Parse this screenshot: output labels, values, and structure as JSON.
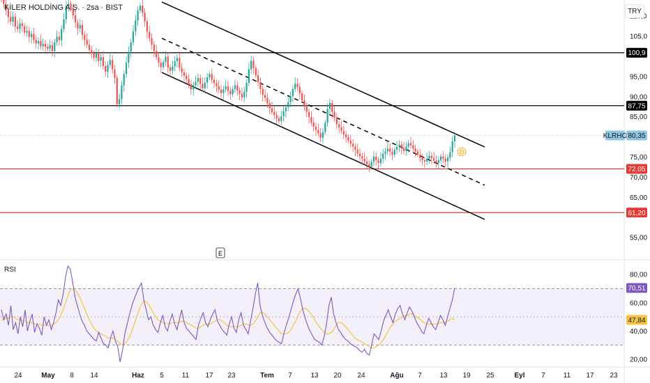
{
  "header": {
    "title": "KİLER HOLDİNG A.Ş. · 2sa · BIST",
    "currency": "TRY"
  },
  "rsi_panel": {
    "title": "RSI"
  },
  "event_marker": "E",
  "dividend_marker": "D",
  "price_axis": {
    "ticks": [
      "110,0",
      "105,0",
      "95,00",
      "90,00",
      "85,00",
      "75,00",
      "70,00",
      "65,00",
      "55,00"
    ],
    "levels": [
      {
        "value": 100.9,
        "label": "100,9",
        "color": "#000000"
      },
      {
        "value": 87.75,
        "label": "87,75",
        "color": "#000000"
      },
      {
        "value": 72.05,
        "label": "72,05",
        "color": "#e53935"
      },
      {
        "value": 61.2,
        "label": "61,20",
        "color": "#e53935"
      }
    ],
    "last_price": {
      "symbol": "KLRHO",
      "value": 80.35,
      "label": "80,35",
      "color": "#90c6e0"
    }
  },
  "rsi_axis": {
    "ticks": [
      "80,00",
      "60,00",
      "40,00",
      "20,00"
    ],
    "current": {
      "label": "70,51",
      "value": 70.51,
      "color": "#7e57c2"
    },
    "ma": {
      "label": "47,84",
      "value": 47.84,
      "color": "#f5c542"
    },
    "upper_band": 70,
    "lower_band": 30
  },
  "time_axis": {
    "labels": [
      "24",
      "May",
      "8",
      "14",
      "Haz",
      "5",
      "11",
      "17",
      "23",
      "Tem",
      "7",
      "13",
      "20",
      "24",
      "Ağu",
      "7",
      "13",
      "19",
      "25",
      "Eyl",
      "7",
      "11",
      "17",
      "23"
    ],
    "bold": [
      "May",
      "Haz",
      "Tem",
      "Ağu",
      "Eyl"
    ]
  },
  "chart_data": {
    "type": "candlestick",
    "y_range": [
      50,
      114
    ],
    "rsi_range": [
      15,
      88
    ],
    "channel": {
      "upper": [
        [
          0,
          113.5
        ],
        [
          1,
          77.5
        ]
      ],
      "mid": [
        [
          0,
          104.5
        ],
        [
          1,
          68
        ]
      ],
      "lower": [
        [
          0,
          96.0
        ],
        [
          1,
          59.5
        ]
      ]
    },
    "closes": [
      114.2,
      113.0,
      111.5,
      109.8,
      108.6,
      109.9,
      107.4,
      106.8,
      108.2,
      107.5,
      105.9,
      106.3,
      104.8,
      105.6,
      104.1,
      103.2,
      103.8,
      102.5,
      103.1,
      102.4,
      101.9,
      102.8,
      101.3,
      103.5,
      104.9,
      104.0,
      106.8,
      109.2,
      112.5,
      113.1,
      111.8,
      110.2,
      108.4,
      106.9,
      107.8,
      105.3,
      104.1,
      102.9,
      101.6,
      100.8,
      99.6,
      100.7,
      98.9,
      99.8,
      97.6,
      96.2,
      97.9,
      99.1,
      96.8,
      94.7,
      88.1,
      89.4,
      92.8,
      95.6,
      98.4,
      101.2,
      103.5,
      106.2,
      108.9,
      111.4,
      112.6,
      110.8,
      108.7,
      106.1,
      104.5,
      102.9,
      101.3,
      99.8,
      98.4,
      97.3,
      98.6,
      99.9,
      97.2,
      96.4,
      97.5,
      98.8,
      99.6,
      97.1,
      96.0,
      95.2,
      94.3,
      93.1,
      91.8,
      92.9,
      93.7,
      94.6,
      93.2,
      92.1,
      93.5,
      94.8,
      95.6,
      94.2,
      93.4,
      92.6,
      91.7,
      90.9,
      91.8,
      92.6,
      91.4,
      90.6,
      91.9,
      92.8,
      91.5,
      90.7,
      89.8,
      91.2,
      93.4,
      96.8,
      98.9,
      97.1,
      95.3,
      93.6,
      91.9,
      90.4,
      89.7,
      88.4,
      87.1,
      86.2,
      85.4,
      84.6,
      83.9,
      85.1,
      86.4,
      87.3,
      88.6,
      90.1,
      91.9,
      93.2,
      92.4,
      90.8,
      89.1,
      87.5,
      86.2,
      84.9,
      83.6,
      82.5,
      81.7,
      80.9,
      79.8,
      81.2,
      83.5,
      86.9,
      88.4,
      86.2,
      84.7,
      83.1,
      82.4,
      81.5,
      80.6,
      79.9,
      79.1,
      78.3,
      77.6,
      76.8,
      75.9,
      75.2,
      74.6,
      73.9,
      73.2,
      72.6,
      73.8,
      75.1,
      74.2,
      73.5,
      74.6,
      75.8,
      76.4,
      77.1,
      76.3,
      75.6,
      76.8,
      77.5,
      78.1,
      77.2,
      76.5,
      77.6,
      78.4,
      77.9,
      77.1,
      76.4,
      75.6,
      74.8,
      74.2,
      73.9,
      74.6,
      75.3,
      74.7,
      74.1,
      73.5,
      74.2,
      75.1,
      74.6,
      73.9,
      74.8,
      76.2,
      78.9,
      80.35
    ],
    "rsi_values": [
      55,
      48,
      52,
      44,
      58,
      41,
      46,
      38,
      50,
      43,
      55,
      40,
      47,
      52,
      39,
      45,
      42,
      37,
      50,
      44,
      48,
      41,
      46,
      53,
      62,
      58,
      66,
      78,
      86,
      84,
      75,
      64,
      58,
      52,
      47,
      44,
      40,
      38,
      36,
      34,
      33,
      39,
      35,
      31,
      30,
      28,
      35,
      40,
      33,
      29,
      18,
      26,
      38,
      45,
      52,
      58,
      63,
      67,
      71,
      74,
      62,
      55,
      48,
      50,
      44,
      41,
      39,
      46,
      51,
      43,
      40,
      47,
      52,
      45,
      41,
      48,
      55,
      46,
      42,
      40,
      38,
      36,
      34,
      44,
      49,
      53,
      46,
      43,
      48,
      52,
      55,
      47,
      44,
      41,
      39,
      37,
      45,
      50,
      42,
      39,
      48,
      53,
      44,
      41,
      38,
      47,
      56,
      66,
      74,
      58,
      51,
      46,
      42,
      39,
      37,
      35,
      33,
      32,
      31,
      38,
      44,
      49,
      55,
      61,
      66,
      70,
      63,
      55,
      49,
      44,
      40,
      37,
      34,
      33,
      32,
      30,
      36,
      45,
      58,
      64,
      52,
      46,
      41,
      39,
      36,
      34,
      33,
      31,
      30,
      29,
      28,
      26,
      25,
      27,
      24,
      23,
      30,
      38,
      36,
      34,
      40,
      47,
      51,
      55,
      50,
      46,
      52,
      56,
      58,
      52,
      48,
      53,
      57,
      54,
      50,
      46,
      43,
      40,
      38,
      44,
      49,
      46,
      43,
      41,
      46,
      51,
      48,
      44,
      50,
      56,
      62,
      70.51
    ],
    "rsi_ma": [
      48,
      48,
      49,
      49,
      50,
      50,
      49,
      48,
      48,
      47,
      47,
      46,
      46,
      46,
      45,
      45,
      45,
      44,
      44,
      44,
      44,
      44,
      45,
      46,
      48,
      51,
      55,
      60,
      65,
      69,
      70,
      69,
      67,
      64,
      60,
      56,
      52,
      48,
      45,
      42,
      40,
      39,
      38,
      37,
      36,
      35,
      35,
      35,
      34,
      33,
      31,
      30,
      31,
      33,
      36,
      40,
      45,
      50,
      55,
      59,
      61,
      61,
      59,
      56,
      53,
      50,
      48,
      47,
      46,
      45,
      45,
      45,
      46,
      46,
      46,
      46,
      47,
      47,
      46,
      45,
      44,
      43,
      42,
      42,
      43,
      44,
      45,
      45,
      45,
      46,
      47,
      48,
      48,
      47,
      46,
      44,
      43,
      43,
      43,
      43,
      43,
      44,
      45,
      45,
      44,
      44,
      45,
      47,
      50,
      53,
      53,
      52,
      50,
      48,
      46,
      44,
      42,
      40,
      38,
      38,
      38,
      39,
      41,
      44,
      47,
      51,
      54,
      56,
      56,
      55,
      53,
      51,
      48,
      45,
      43,
      41,
      39,
      38,
      38,
      39,
      41,
      44,
      46,
      46,
      45,
      43,
      41,
      39,
      37,
      35,
      34,
      33,
      32,
      31,
      30,
      29,
      28,
      28,
      29,
      30,
      32,
      34,
      37,
      40,
      43,
      45,
      47,
      48,
      49,
      50,
      51,
      51,
      52,
      52,
      51,
      50,
      49,
      47,
      46,
      45,
      45,
      45,
      45,
      45,
      45,
      46,
      46,
      46,
      47,
      48,
      49,
      47.84
    ]
  }
}
